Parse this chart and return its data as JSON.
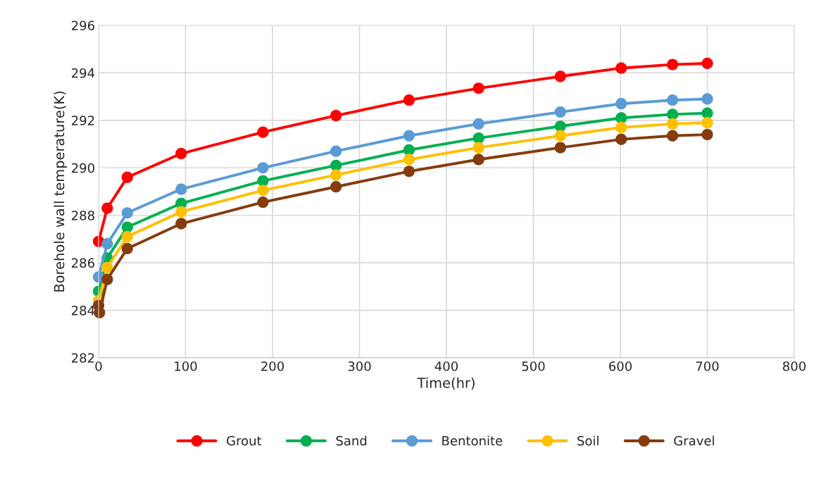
{
  "chart_data": {
    "type": "line",
    "xlabel": "Time(hr)",
    "ylabel": "Borehole wall temperature(K)",
    "x": [
      0,
      10,
      33,
      95,
      189,
      273,
      357,
      437,
      531,
      601,
      660,
      700
    ],
    "series": [
      {
        "name": "Grout",
        "color": "#ff0000",
        "values": [
          286.9,
          288.3,
          289.6,
          290.6,
          291.5,
          292.2,
          292.85,
          293.35,
          293.85,
          294.2,
          294.35,
          294.4
        ]
      },
      {
        "name": "Sand",
        "color": "#00b050",
        "values": [
          284.8,
          286.2,
          287.5,
          288.5,
          289.45,
          290.1,
          290.75,
          291.25,
          291.75,
          292.1,
          292.25,
          292.3
        ]
      },
      {
        "name": "Bentonite",
        "color": "#5b9bd5",
        "values": [
          285.4,
          286.8,
          288.1,
          289.1,
          290.0,
          290.7,
          291.35,
          291.85,
          292.35,
          292.7,
          292.85,
          292.9
        ]
      },
      {
        "name": "Soil",
        "color": "#ffc000",
        "values": [
          284.4,
          285.8,
          287.1,
          288.15,
          289.05,
          289.7,
          290.35,
          290.85,
          291.35,
          291.7,
          291.85,
          291.9
        ]
      },
      {
        "name": "Gravel",
        "color": "#843c0c",
        "x": [
          0,
          1,
          10,
          33,
          95,
          189,
          273,
          357,
          437,
          531,
          601,
          660,
          700
        ],
        "values": [
          284.2,
          283.9,
          285.3,
          286.6,
          287.65,
          288.55,
          289.2,
          289.85,
          290.35,
          290.85,
          291.2,
          291.35,
          291.4
        ]
      }
    ],
    "xlim": [
      0,
      800
    ],
    "xticks": [
      0,
      100,
      200,
      300,
      400,
      500,
      600,
      700,
      800
    ],
    "ylim": [
      282,
      296
    ],
    "yticks": [
      282,
      284,
      286,
      288,
      290,
      292,
      294,
      296
    ],
    "grid": true,
    "legend": "bottom",
    "marker": "circle",
    "line_style": "solid"
  }
}
